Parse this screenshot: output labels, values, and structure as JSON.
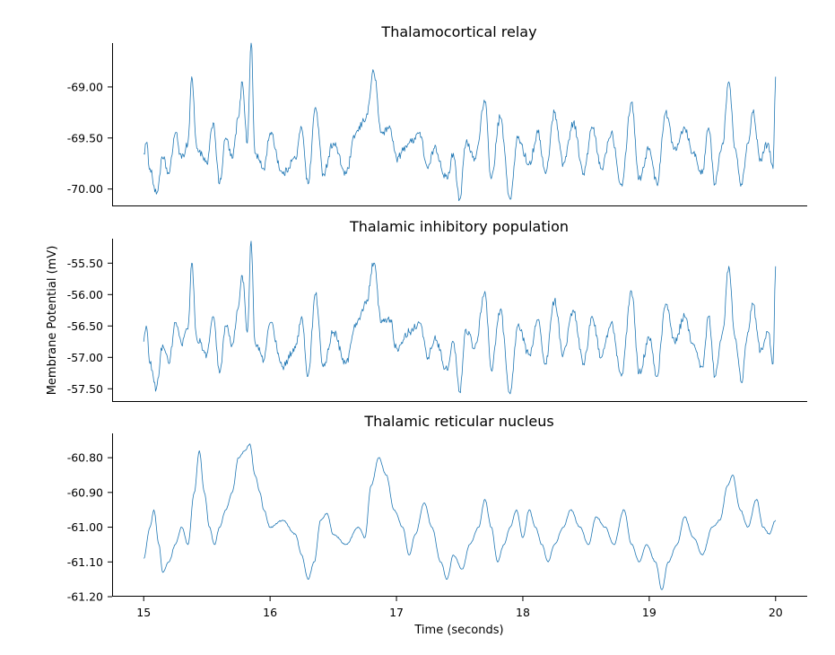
{
  "chart_data": {
    "type": "line",
    "xlabel": "Time (seconds)",
    "ylabel": "Membrane Potential (mV)",
    "xlim": [
      14.75,
      20.25
    ],
    "xticks": [
      15,
      16,
      17,
      18,
      19,
      20
    ],
    "xtick_labels": [
      "15",
      "16",
      "17",
      "18",
      "19",
      "20"
    ],
    "line_color": "#1f77b4",
    "grid": false,
    "panels": [
      {
        "title": "Thalamocortical relay",
        "ylim": [
          -70.17,
          -68.57
        ],
        "yticks": [
          -69.0,
          -69.5,
          -70.0
        ],
        "ytick_labels": [
          "-69.00",
          "-69.50",
          "-70.00"
        ],
        "anchors": [
          [
            15.0,
            -69.65
          ],
          [
            15.02,
            -69.55
          ],
          [
            15.05,
            -69.8
          ],
          [
            15.1,
            -70.05
          ],
          [
            15.15,
            -69.7
          ],
          [
            15.2,
            -69.85
          ],
          [
            15.25,
            -69.45
          ],
          [
            15.3,
            -69.7
          ],
          [
            15.35,
            -69.55
          ],
          [
            15.38,
            -68.9
          ],
          [
            15.42,
            -69.6
          ],
          [
            15.5,
            -69.75
          ],
          [
            15.55,
            -69.35
          ],
          [
            15.6,
            -69.95
          ],
          [
            15.65,
            -69.5
          ],
          [
            15.7,
            -69.7
          ],
          [
            15.75,
            -69.3
          ],
          [
            15.78,
            -68.95
          ],
          [
            15.82,
            -69.55
          ],
          [
            15.85,
            -68.55
          ],
          [
            15.88,
            -69.65
          ],
          [
            15.95,
            -69.8
          ],
          [
            16.0,
            -69.45
          ],
          [
            16.1,
            -69.85
          ],
          [
            16.2,
            -69.7
          ],
          [
            16.25,
            -69.4
          ],
          [
            16.3,
            -69.95
          ],
          [
            16.36,
            -69.2
          ],
          [
            16.42,
            -69.85
          ],
          [
            16.5,
            -69.55
          ],
          [
            16.6,
            -69.85
          ],
          [
            16.68,
            -69.45
          ],
          [
            16.76,
            -69.3
          ],
          [
            16.82,
            -68.85
          ],
          [
            16.88,
            -69.45
          ],
          [
            16.95,
            -69.4
          ],
          [
            17.0,
            -69.7
          ],
          [
            17.1,
            -69.55
          ],
          [
            17.18,
            -69.45
          ],
          [
            17.25,
            -69.8
          ],
          [
            17.3,
            -69.6
          ],
          [
            17.4,
            -69.9
          ],
          [
            17.45,
            -69.65
          ],
          [
            17.5,
            -70.1
          ],
          [
            17.55,
            -69.55
          ],
          [
            17.62,
            -69.7
          ],
          [
            17.7,
            -69.15
          ],
          [
            17.75,
            -69.9
          ],
          [
            17.82,
            -69.3
          ],
          [
            17.9,
            -70.1
          ],
          [
            17.96,
            -69.5
          ],
          [
            18.05,
            -69.75
          ],
          [
            18.12,
            -69.45
          ],
          [
            18.18,
            -69.85
          ],
          [
            18.25,
            -69.25
          ],
          [
            18.32,
            -69.75
          ],
          [
            18.4,
            -69.35
          ],
          [
            18.48,
            -69.85
          ],
          [
            18.55,
            -69.4
          ],
          [
            18.62,
            -69.8
          ],
          [
            18.7,
            -69.45
          ],
          [
            18.78,
            -69.95
          ],
          [
            18.86,
            -69.15
          ],
          [
            18.92,
            -69.9
          ],
          [
            19.0,
            -69.6
          ],
          [
            19.06,
            -69.95
          ],
          [
            19.13,
            -69.25
          ],
          [
            19.2,
            -69.6
          ],
          [
            19.28,
            -69.4
          ],
          [
            19.35,
            -69.65
          ],
          [
            19.42,
            -69.85
          ],
          [
            19.47,
            -69.4
          ],
          [
            19.52,
            -69.95
          ],
          [
            19.58,
            -69.55
          ],
          [
            19.63,
            -68.95
          ],
          [
            19.68,
            -69.6
          ],
          [
            19.73,
            -69.95
          ],
          [
            19.78,
            -69.55
          ],
          [
            19.82,
            -69.25
          ],
          [
            19.88,
            -69.7
          ],
          [
            19.94,
            -69.55
          ],
          [
            19.98,
            -69.8
          ],
          [
            20.0,
            -68.9
          ]
        ]
      },
      {
        "title": "Thalamic inhibitory population",
        "ylim": [
          -57.71,
          -55.11
        ],
        "yticks": [
          -55.5,
          -56.0,
          -56.5,
          -57.0,
          -57.5
        ],
        "ytick_labels": [
          "-55.50",
          "-56.00",
          "-56.50",
          "-57.00",
          "-57.50"
        ],
        "anchors": [
          [
            15.0,
            -56.75
          ],
          [
            15.02,
            -56.5
          ],
          [
            15.05,
            -57.1
          ],
          [
            15.1,
            -57.5
          ],
          [
            15.15,
            -56.8
          ],
          [
            15.2,
            -57.1
          ],
          [
            15.25,
            -56.45
          ],
          [
            15.3,
            -56.8
          ],
          [
            15.35,
            -56.55
          ],
          [
            15.38,
            -55.5
          ],
          [
            15.42,
            -56.7
          ],
          [
            15.5,
            -56.95
          ],
          [
            15.55,
            -56.35
          ],
          [
            15.6,
            -57.25
          ],
          [
            15.65,
            -56.5
          ],
          [
            15.7,
            -56.8
          ],
          [
            15.75,
            -56.2
          ],
          [
            15.78,
            -55.7
          ],
          [
            15.82,
            -56.6
          ],
          [
            15.85,
            -55.15
          ],
          [
            15.88,
            -56.75
          ],
          [
            15.95,
            -57.05
          ],
          [
            16.0,
            -56.45
          ],
          [
            16.1,
            -57.15
          ],
          [
            16.2,
            -56.85
          ],
          [
            16.25,
            -56.35
          ],
          [
            16.3,
            -57.3
          ],
          [
            16.36,
            -56.0
          ],
          [
            16.42,
            -57.15
          ],
          [
            16.5,
            -56.6
          ],
          [
            16.6,
            -57.1
          ],
          [
            16.68,
            -56.45
          ],
          [
            16.76,
            -56.15
          ],
          [
            16.82,
            -55.5
          ],
          [
            16.88,
            -56.45
          ],
          [
            16.95,
            -56.4
          ],
          [
            17.0,
            -56.85
          ],
          [
            17.1,
            -56.6
          ],
          [
            17.18,
            -56.45
          ],
          [
            17.25,
            -57.0
          ],
          [
            17.3,
            -56.7
          ],
          [
            17.4,
            -57.2
          ],
          [
            17.45,
            -56.75
          ],
          [
            17.5,
            -57.55
          ],
          [
            17.55,
            -56.55
          ],
          [
            17.62,
            -56.85
          ],
          [
            17.7,
            -55.95
          ],
          [
            17.75,
            -57.2
          ],
          [
            17.82,
            -56.25
          ],
          [
            17.9,
            -57.58
          ],
          [
            17.96,
            -56.5
          ],
          [
            18.05,
            -56.95
          ],
          [
            18.12,
            -56.4
          ],
          [
            18.18,
            -57.1
          ],
          [
            18.25,
            -56.1
          ],
          [
            18.32,
            -56.95
          ],
          [
            18.4,
            -56.25
          ],
          [
            18.48,
            -57.1
          ],
          [
            18.55,
            -56.35
          ],
          [
            18.62,
            -57.0
          ],
          [
            18.7,
            -56.45
          ],
          [
            18.78,
            -57.3
          ],
          [
            18.86,
            -55.95
          ],
          [
            18.92,
            -57.25
          ],
          [
            19.0,
            -56.7
          ],
          [
            19.06,
            -57.3
          ],
          [
            19.13,
            -56.15
          ],
          [
            19.2,
            -56.75
          ],
          [
            19.28,
            -56.35
          ],
          [
            19.35,
            -56.8
          ],
          [
            19.42,
            -57.15
          ],
          [
            19.47,
            -56.35
          ],
          [
            19.52,
            -57.3
          ],
          [
            19.58,
            -56.6
          ],
          [
            19.63,
            -55.55
          ],
          [
            19.68,
            -56.7
          ],
          [
            19.73,
            -57.4
          ],
          [
            19.78,
            -56.6
          ],
          [
            19.82,
            -56.15
          ],
          [
            19.88,
            -56.9
          ],
          [
            19.94,
            -56.6
          ],
          [
            19.98,
            -57.1
          ],
          [
            20.0,
            -55.55
          ]
        ]
      },
      {
        "title": "Thalamic reticular nucleus",
        "ylim": [
          -61.2,
          -60.73
        ],
        "yticks": [
          -60.8,
          -60.9,
          -61.0,
          -61.1,
          -61.2
        ],
        "ytick_labels": [
          "-60.80",
          "-60.90",
          "-61.00",
          "-61.10",
          "-61.20"
        ],
        "anchors": [
          [
            15.0,
            -61.09
          ],
          [
            15.05,
            -61.0
          ],
          [
            15.08,
            -60.95
          ],
          [
            15.12,
            -61.05
          ],
          [
            15.15,
            -61.13
          ],
          [
            15.2,
            -61.1
          ],
          [
            15.25,
            -61.05
          ],
          [
            15.3,
            -61.0
          ],
          [
            15.35,
            -61.05
          ],
          [
            15.4,
            -60.9
          ],
          [
            15.44,
            -60.78
          ],
          [
            15.48,
            -60.9
          ],
          [
            15.52,
            -61.0
          ],
          [
            15.56,
            -61.05
          ],
          [
            15.6,
            -61.0
          ],
          [
            15.65,
            -60.95
          ],
          [
            15.7,
            -60.9
          ],
          [
            15.75,
            -60.8
          ],
          [
            15.8,
            -60.78
          ],
          [
            15.84,
            -60.76
          ],
          [
            15.88,
            -60.85
          ],
          [
            15.92,
            -60.9
          ],
          [
            15.95,
            -60.95
          ],
          [
            16.0,
            -61.0
          ],
          [
            16.1,
            -60.98
          ],
          [
            16.2,
            -61.02
          ],
          [
            16.25,
            -61.08
          ],
          [
            16.3,
            -61.15
          ],
          [
            16.35,
            -61.1
          ],
          [
            16.4,
            -60.98
          ],
          [
            16.45,
            -60.96
          ],
          [
            16.5,
            -61.02
          ],
          [
            16.6,
            -61.05
          ],
          [
            16.7,
            -61.0
          ],
          [
            16.75,
            -61.03
          ],
          [
            16.8,
            -60.88
          ],
          [
            16.86,
            -60.8
          ],
          [
            16.92,
            -60.85
          ],
          [
            16.98,
            -60.95
          ],
          [
            17.05,
            -61.0
          ],
          [
            17.1,
            -61.08
          ],
          [
            17.15,
            -61.02
          ],
          [
            17.22,
            -60.93
          ],
          [
            17.28,
            -61.0
          ],
          [
            17.35,
            -61.1
          ],
          [
            17.4,
            -61.15
          ],
          [
            17.45,
            -61.08
          ],
          [
            17.52,
            -61.12
          ],
          [
            17.58,
            -61.05
          ],
          [
            17.65,
            -61.0
          ],
          [
            17.7,
            -60.92
          ],
          [
            17.75,
            -61.0
          ],
          [
            17.8,
            -61.1
          ],
          [
            17.85,
            -61.05
          ],
          [
            17.9,
            -61.0
          ],
          [
            17.95,
            -60.95
          ],
          [
            18.0,
            -61.03
          ],
          [
            18.05,
            -60.95
          ],
          [
            18.1,
            -61.0
          ],
          [
            18.15,
            -61.05
          ],
          [
            18.2,
            -61.1
          ],
          [
            18.25,
            -61.05
          ],
          [
            18.32,
            -61.0
          ],
          [
            18.38,
            -60.95
          ],
          [
            18.45,
            -61.0
          ],
          [
            18.52,
            -61.05
          ],
          [
            18.58,
            -60.97
          ],
          [
            18.65,
            -61.0
          ],
          [
            18.72,
            -61.05
          ],
          [
            18.8,
            -60.95
          ],
          [
            18.86,
            -61.05
          ],
          [
            18.92,
            -61.1
          ],
          [
            18.98,
            -61.05
          ],
          [
            19.05,
            -61.1
          ],
          [
            19.1,
            -61.18
          ],
          [
            19.15,
            -61.1
          ],
          [
            19.22,
            -61.05
          ],
          [
            19.28,
            -60.97
          ],
          [
            19.35,
            -61.03
          ],
          [
            19.42,
            -61.08
          ],
          [
            19.5,
            -61.0
          ],
          [
            19.56,
            -60.98
          ],
          [
            19.62,
            -60.88
          ],
          [
            19.66,
            -60.85
          ],
          [
            19.72,
            -60.95
          ],
          [
            19.78,
            -61.0
          ],
          [
            19.85,
            -60.92
          ],
          [
            19.9,
            -61.0
          ],
          [
            19.95,
            -61.02
          ],
          [
            20.0,
            -60.98
          ]
        ]
      }
    ]
  }
}
